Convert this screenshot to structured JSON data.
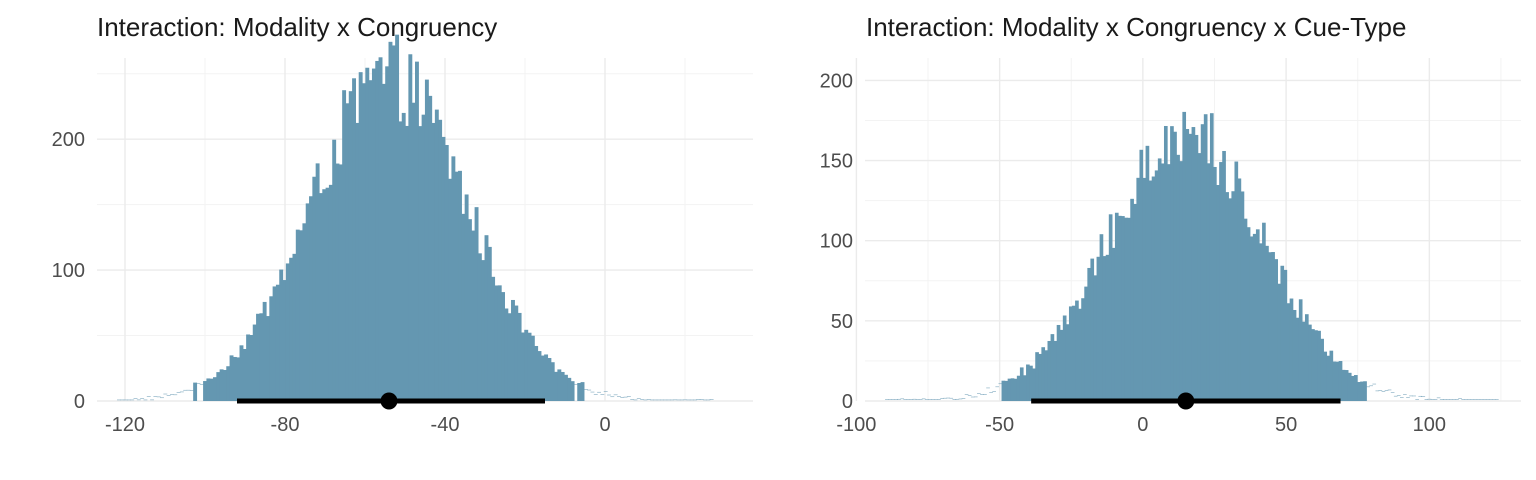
{
  "chart_data": [
    {
      "type": "histogram",
      "title": "Interaction: Modality x Congruency",
      "xlabel": "",
      "ylabel": "",
      "xlim": [
        -127,
        37
      ],
      "ylim": [
        0,
        260
      ],
      "x_ticks": [
        -120,
        -80,
        -40,
        0
      ],
      "y_ticks": [
        0,
        100,
        200
      ],
      "grid": true,
      "bar_color": "#6497b1",
      "bins": {
        "start": -122,
        "end": 27,
        "count": 180
      },
      "distribution": {
        "mean": -54,
        "sd": 19.5,
        "peak_count": 250
      },
      "interval": {
        "low": -92,
        "high": -15,
        "point": -54
      }
    },
    {
      "type": "histogram",
      "title": "Interaction: Modality x Congruency x Cue-Type",
      "xlabel": "",
      "ylabel": "",
      "xlim": [
        -97,
        132
      ],
      "ylim": [
        0,
        210
      ],
      "x_ticks": [
        -100,
        -50,
        0,
        50,
        100
      ],
      "y_ticks": [
        0,
        50,
        100,
        150,
        200
      ],
      "grid": true,
      "bar_color": "#6497b1",
      "bins": {
        "start": -90,
        "end": 124,
        "count": 200
      },
      "distribution": {
        "mean": 15,
        "sd": 27,
        "peak_count": 170
      },
      "interval": {
        "low": -39,
        "high": 69,
        "point": 15
      }
    }
  ]
}
